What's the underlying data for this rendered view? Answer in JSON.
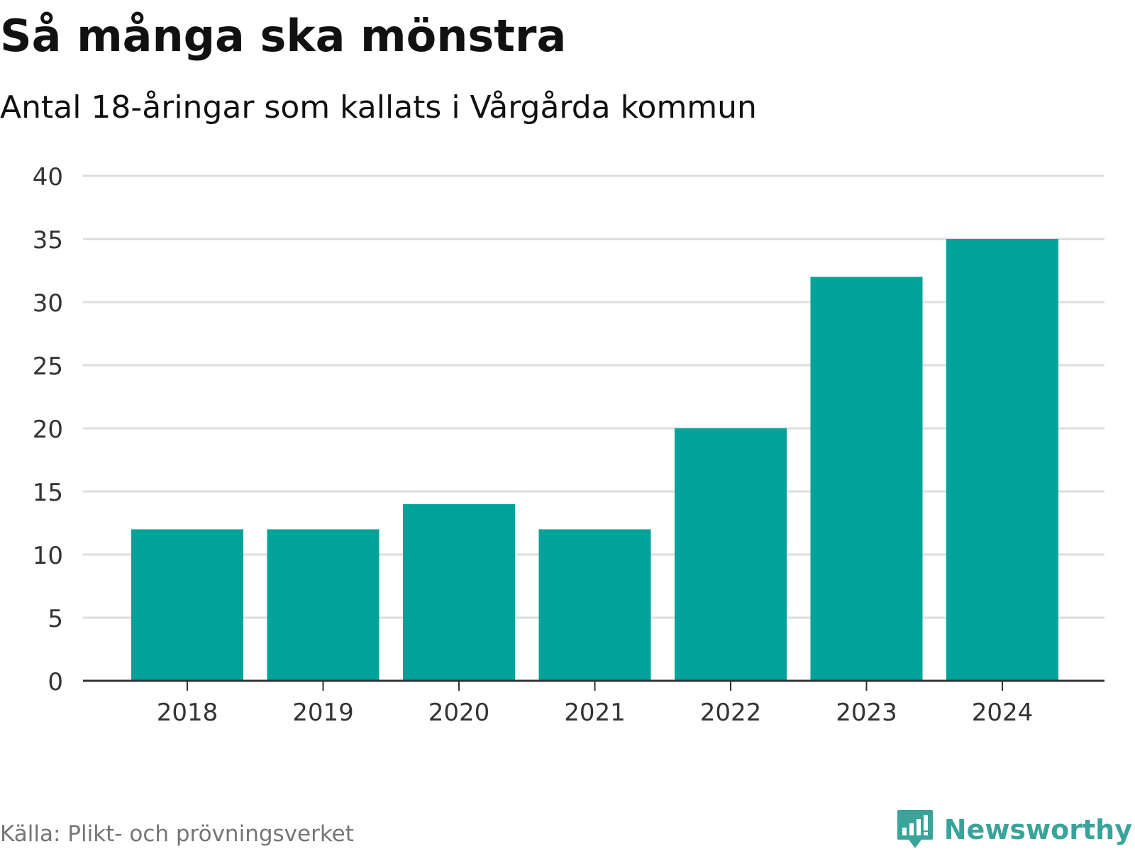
{
  "title": "Så många ska mönstra",
  "subtitle": "Antal 18-åringar som kallats i Vårgårda kommun",
  "source": "Källa: Plikt- och prövningsverket",
  "brand": {
    "name": "Newsworthy",
    "color": "#3aa39a"
  },
  "colors": {
    "bar": "#00a39a",
    "grid": "#dddddd",
    "axis": "#333333",
    "tick_text": "#333333"
  },
  "chart_data": {
    "type": "bar",
    "title": "Så många ska mönstra",
    "subtitle": "Antal 18-åringar som kallats i Vårgårda kommun",
    "xlabel": "",
    "ylabel": "",
    "categories": [
      "2018",
      "2019",
      "2020",
      "2021",
      "2022",
      "2023",
      "2024"
    ],
    "values": [
      12,
      12,
      14,
      12,
      20,
      32,
      35
    ],
    "ylim": [
      0,
      40
    ],
    "yticks": [
      0,
      5,
      10,
      15,
      20,
      25,
      30,
      35,
      40
    ],
    "grid": true,
    "legend": "none"
  }
}
